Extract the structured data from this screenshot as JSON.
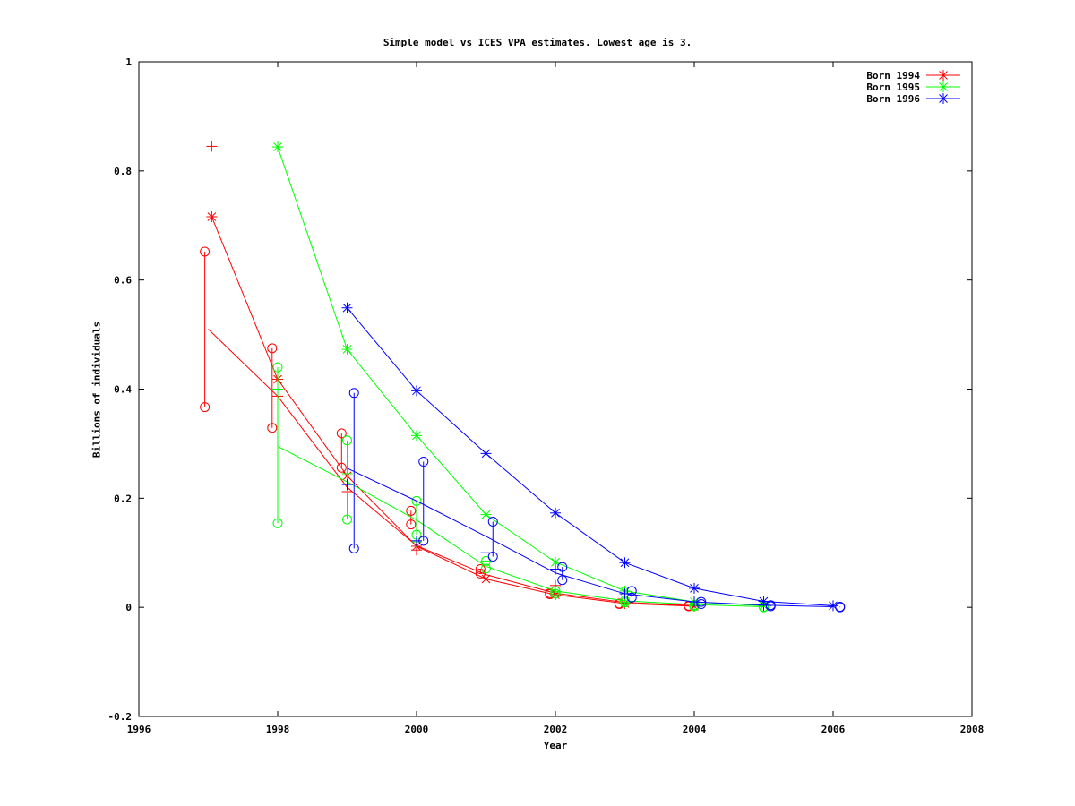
{
  "chart_data": {
    "type": "line",
    "title": "Simple model vs ICES VPA estimates. Lowest age is 3.",
    "xlabel": "Year",
    "ylabel": "Billions of individuals",
    "xlim": [
      1996,
      2008
    ],
    "ylim": [
      -0.2,
      1
    ],
    "xticks": [
      "1996",
      "1998",
      "2000",
      "2002",
      "2004",
      "2006",
      "2008"
    ],
    "yticks": [
      "-0.2",
      "0",
      "0.2",
      "0.4",
      "0.6",
      "0.8",
      "1"
    ],
    "grid": false,
    "legend_position": "top-right",
    "series": [
      {
        "name": "Born 1994",
        "color": "#ff0000",
        "vpa_points": [
          [
            1997.05,
            0.716
          ],
          [
            1998,
            0.418
          ],
          [
            1999,
            0.241
          ],
          [
            2000,
            0.112
          ],
          [
            2001,
            0.052
          ],
          [
            2002,
            0.023
          ],
          [
            2003,
            0.007
          ],
          [
            2004,
            0.002
          ]
        ],
        "model_line": [
          [
            1997,
            0.51
          ],
          [
            1998,
            0.387
          ],
          [
            1999,
            0.22
          ],
          [
            2000,
            0.113
          ],
          [
            2001,
            0.06
          ],
          [
            2002,
            0.026
          ],
          [
            2003,
            0.009
          ],
          [
            2004,
            0.003
          ]
        ],
        "plus_markers": [
          [
            1997.05,
            0.845
          ],
          [
            1998,
            0.387
          ],
          [
            1999,
            0.212
          ],
          [
            2000,
            0.105
          ],
          [
            2002,
            0.04
          ]
        ],
        "circle_ranges": [
          [
            1996.95,
            0.367,
            0.652
          ],
          [
            1997.92,
            0.329,
            0.475
          ],
          [
            1998.92,
            0.256,
            0.319
          ],
          [
            1999.92,
            0.152,
            0.177
          ],
          [
            2000.92,
            0.062,
            0.07
          ],
          [
            2001.92,
            0.024,
            0.026
          ],
          [
            2002.92,
            0.006,
            0.007
          ],
          [
            2003.92,
            0.002,
            0.003
          ]
        ]
      },
      {
        "name": "Born 1995",
        "color": "#00ff00",
        "vpa_points": [
          [
            1998,
            0.844
          ],
          [
            1999,
            0.473
          ],
          [
            2000,
            0.315
          ],
          [
            2001,
            0.17
          ],
          [
            2002,
            0.083
          ],
          [
            2003,
            0.03
          ],
          [
            2004,
            0.01
          ],
          [
            2005,
            0.003
          ]
        ],
        "model_line": [
          [
            1998,
            0.295
          ],
          [
            1999,
            0.23
          ],
          [
            2000,
            0.16
          ],
          [
            2001,
            0.075
          ],
          [
            2002,
            0.03
          ],
          [
            2003,
            0.012
          ],
          [
            2004,
            0.005
          ],
          [
            2005,
            0.001
          ]
        ],
        "plus_markers": [
          [
            1998,
            0.4
          ],
          [
            1999,
            0.245
          ],
          [
            2000,
            0.12
          ],
          [
            2001,
            0.085
          ],
          [
            2002,
            0.028
          ],
          [
            2003,
            0.009
          ],
          [
            2004,
            0.003
          ]
        ],
        "circle_ranges": [
          [
            1998,
            0.154,
            0.44
          ],
          [
            1999,
            0.161,
            0.306
          ],
          [
            2000,
            0.133,
            0.195
          ],
          [
            2001,
            0.071,
            0.085
          ],
          [
            2002,
            0.025,
            0.03
          ],
          [
            2003,
            0.009,
            0.012
          ],
          [
            2004,
            0.002,
            0.004
          ],
          [
            2005,
            0.0,
            0.001
          ]
        ]
      },
      {
        "name": "Born 1996",
        "color": "#0000ff",
        "vpa_points": [
          [
            1999,
            0.549
          ],
          [
            2000,
            0.397
          ],
          [
            2001,
            0.282
          ],
          [
            2002,
            0.173
          ],
          [
            2003,
            0.082
          ],
          [
            2004,
            0.035
          ],
          [
            2005,
            0.011
          ],
          [
            2006,
            0.003
          ]
        ],
        "model_line": [
          [
            1999,
            0.255
          ],
          [
            2000,
            0.195
          ],
          [
            2001,
            0.13
          ],
          [
            2002,
            0.063
          ],
          [
            2003,
            0.025
          ],
          [
            2004,
            0.01
          ],
          [
            2005,
            0.004
          ],
          [
            2006,
            0.001
          ]
        ],
        "plus_markers": [
          [
            1999,
            0.225
          ],
          [
            2000,
            0.122
          ],
          [
            2001,
            0.1
          ],
          [
            2002,
            0.07
          ],
          [
            2003,
            0.025
          ],
          [
            2004,
            0.01
          ],
          [
            2005,
            0.004
          ]
        ],
        "circle_ranges": [
          [
            1999.1,
            0.108,
            0.393
          ],
          [
            2000.1,
            0.122,
            0.267
          ],
          [
            2001.1,
            0.093,
            0.157
          ],
          [
            2002.1,
            0.05,
            0.074
          ],
          [
            2003.1,
            0.018,
            0.03
          ],
          [
            2004.1,
            0.006,
            0.01
          ],
          [
            2005.1,
            0.002,
            0.004
          ],
          [
            2006.1,
            0.0,
            0.001
          ]
        ]
      }
    ]
  }
}
